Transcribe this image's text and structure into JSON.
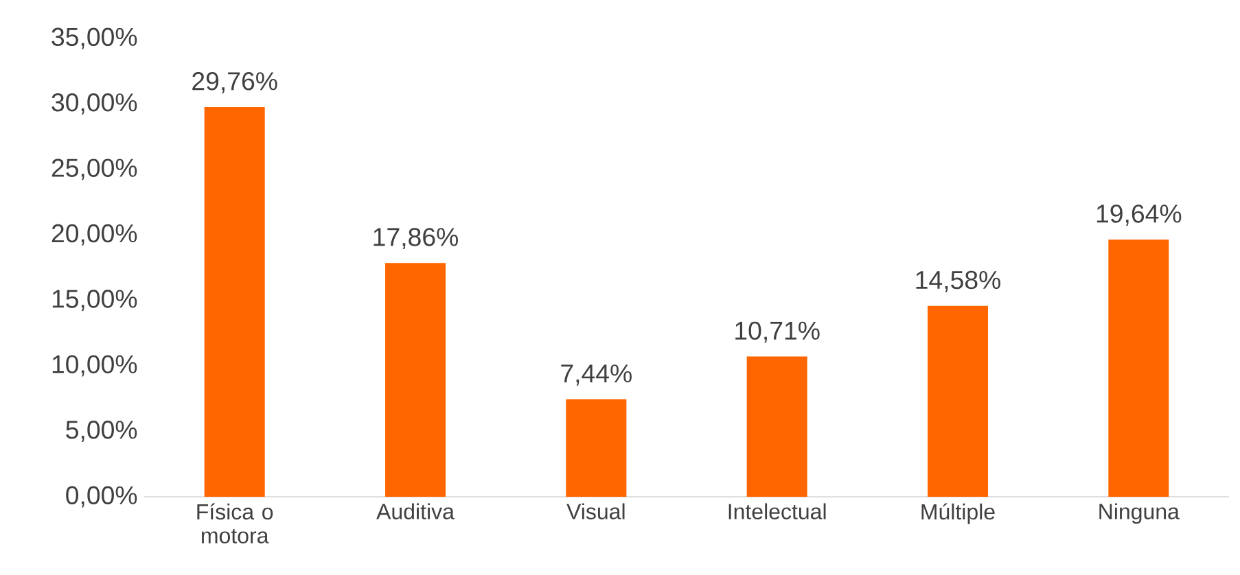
{
  "chart_data": {
    "type": "bar",
    "categories": [
      "Física o motora",
      "Auditiva",
      "Visual",
      "Intelectual",
      "Múltiple",
      "Ninguna"
    ],
    "values": [
      29.76,
      17.86,
      7.44,
      10.71,
      14.58,
      19.64
    ],
    "value_labels": [
      "29,76%",
      "17,86%",
      "7,44%",
      "10,71%",
      "14,58%",
      "19,64%"
    ],
    "color": "#ff6600",
    "ylim": [
      0,
      35
    ],
    "yticks": [
      {
        "value": 0,
        "label": "0,00%"
      },
      {
        "value": 5,
        "label": "5,00%"
      },
      {
        "value": 10,
        "label": "10,00%"
      },
      {
        "value": 15,
        "label": "15,00%"
      },
      {
        "value": 20,
        "label": "20,00%"
      },
      {
        "value": 25,
        "label": "25,00%"
      },
      {
        "value": 30,
        "label": "30,00%"
      },
      {
        "value": 35,
        "label": "35,00%"
      }
    ]
  }
}
